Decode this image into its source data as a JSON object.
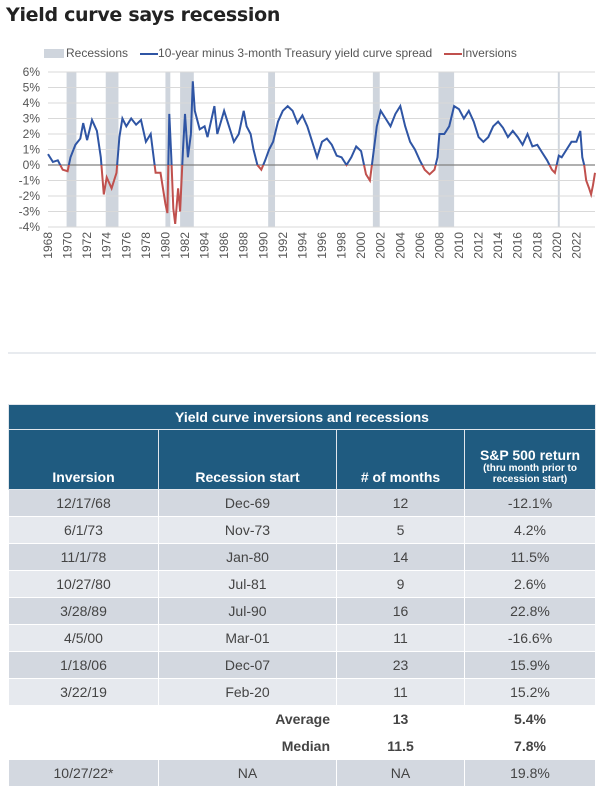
{
  "title": "Yield curve says recession",
  "chart_data": {
    "type": "line",
    "title": "Yield curve says recession",
    "legend": [
      "Recessions",
      "10-year minus 3-month Treasury yield curve spread",
      "Inversions"
    ],
    "legend_position": "top",
    "colors": {
      "spread": "#2f55a4",
      "inversion": "#c0504d",
      "recession": "#cfd5dd",
      "grid": "#d9d9d9",
      "zero": "#808080"
    },
    "ylim": [
      -4,
      6
    ],
    "xlim": [
      1968,
      2023.9
    ],
    "y_ticks": [
      "6%",
      "5%",
      "4%",
      "3%",
      "2%",
      "1%",
      "0%",
      "-1%",
      "-2%",
      "-3%",
      "-4%"
    ],
    "y_tick_values": [
      6,
      5,
      4,
      3,
      2,
      1,
      0,
      -1,
      -2,
      -3,
      -4
    ],
    "x_ticks": [
      "1968",
      "1970",
      "1972",
      "1974",
      "1976",
      "1978",
      "1980",
      "1982",
      "1984",
      "1986",
      "1988",
      "1990",
      "1992",
      "1994",
      "1996",
      "1998",
      "2000",
      "2002",
      "2004",
      "2006",
      "2008",
      "2010",
      "2012",
      "2014",
      "2016",
      "2018",
      "2020",
      "2022"
    ],
    "recessions": [
      [
        1969.9,
        1970.9
      ],
      [
        1973.9,
        1975.2
      ],
      [
        1980.0,
        1980.5
      ],
      [
        1981.5,
        1982.9
      ],
      [
        1990.5,
        1991.2
      ],
      [
        2001.2,
        2001.9
      ],
      [
        2007.9,
        2009.5
      ],
      [
        2020.1,
        2020.3
      ]
    ],
    "series": [
      {
        "name": "10-year minus 3-month Treasury yield curve spread",
        "x": [
          1968.0,
          1968.5,
          1969.0,
          1969.5,
          1970.0,
          1970.3,
          1970.8,
          1971.3,
          1971.6,
          1972.0,
          1972.5,
          1973.0,
          1973.4,
          1973.7,
          1974.0,
          1974.5,
          1975.0,
          1975.3,
          1975.6,
          1976.0,
          1976.5,
          1977.0,
          1977.5,
          1978.0,
          1978.5,
          1979.0,
          1979.5,
          1980.0,
          1980.2,
          1980.4,
          1980.6,
          1980.8,
          1981.0,
          1981.3,
          1981.5,
          1981.8,
          1982.0,
          1982.3,
          1982.6,
          1982.8,
          1983.0,
          1983.5,
          1984.0,
          1984.3,
          1985.0,
          1985.3,
          1986.0,
          1986.5,
          1987.0,
          1987.5,
          1988.0,
          1988.3,
          1988.7,
          1989.0,
          1989.4,
          1989.8,
          1990.2,
          1990.6,
          1991.0,
          1991.5,
          1992.0,
          1992.5,
          1993.0,
          1993.5,
          1994.0,
          1994.5,
          1995.0,
          1995.5,
          1996.0,
          1996.5,
          1997.0,
          1997.5,
          1998.0,
          1998.5,
          1999.0,
          1999.5,
          2000.0,
          2000.5,
          2000.9,
          2001.2,
          2001.6,
          2002.0,
          2002.5,
          2003.0,
          2003.5,
          2004.0,
          2004.5,
          2005.0,
          2005.5,
          2006.0,
          2006.5,
          2007.0,
          2007.5,
          2007.8,
          2008.0,
          2008.5,
          2009.0,
          2009.5,
          2010.0,
          2010.5,
          2011.0,
          2011.5,
          2012.0,
          2012.5,
          2013.0,
          2013.5,
          2014.0,
          2014.5,
          2015.0,
          2015.5,
          2016.0,
          2016.5,
          2017.0,
          2017.5,
          2018.0,
          2018.5,
          2019.0,
          2019.5,
          2019.8,
          2020.2,
          2020.5,
          2021.0,
          2021.5,
          2022.0,
          2022.4,
          2022.6,
          2022.8,
          2023.0,
          2023.3,
          2023.5,
          2023.7,
          2023.9
        ],
        "y": [
          0.7,
          0.2,
          0.3,
          -0.3,
          -0.4,
          0.5,
          1.3,
          1.7,
          2.7,
          1.6,
          2.9,
          2.2,
          0.5,
          -1.9,
          -0.8,
          -1.5,
          -0.5,
          1.8,
          3.0,
          2.5,
          3.0,
          2.6,
          2.9,
          1.5,
          2.0,
          -0.5,
          -0.5,
          -2.5,
          -3.1,
          3.3,
          0.5,
          -2.8,
          -3.8,
          -1.5,
          -3.0,
          1.0,
          3.3,
          0.5,
          2.0,
          5.4,
          3.5,
          2.3,
          2.5,
          1.8,
          3.8,
          2.0,
          3.5,
          2.5,
          1.5,
          2.0,
          3.5,
          2.5,
          2.0,
          1.0,
          0.0,
          -0.3,
          0.3,
          1.0,
          1.5,
          2.8,
          3.5,
          3.8,
          3.5,
          2.7,
          3.2,
          2.5,
          1.5,
          0.5,
          1.5,
          1.7,
          1.3,
          0.6,
          0.5,
          0.0,
          0.5,
          1.2,
          0.9,
          -0.6,
          -1.0,
          0.5,
          2.5,
          3.5,
          3.0,
          2.5,
          3.3,
          3.8,
          2.5,
          1.5,
          1.0,
          0.3,
          -0.3,
          -0.6,
          -0.3,
          0.5,
          2.0,
          2.0,
          2.5,
          3.8,
          3.6,
          3.0,
          3.5,
          2.8,
          1.8,
          1.5,
          1.8,
          2.5,
          2.8,
          2.4,
          1.8,
          2.2,
          1.8,
          1.3,
          2.0,
          1.2,
          1.3,
          0.8,
          0.3,
          -0.3,
          -0.5,
          0.6,
          0.5,
          1.0,
          1.5,
          1.5,
          2.2,
          0.5,
          0.0,
          -1.0,
          -1.5,
          -1.9,
          -1.3,
          -0.5
        ]
      }
    ]
  },
  "table": {
    "caption": "Yield curve inversions and recessions",
    "headers": {
      "inversion": "Inversion",
      "recession": "Recession start",
      "months": "# of months",
      "sp": "S&P 500 return",
      "sp_sub": "(thru month prior to recession start)"
    },
    "rows": [
      [
        "12/17/68",
        "Dec-69",
        "12",
        "-12.1%"
      ],
      [
        "6/1/73",
        "Nov-73",
        "5",
        "4.2%"
      ],
      [
        "11/1/78",
        "Jan-80",
        "14",
        "11.5%"
      ],
      [
        "10/27/80",
        "Jul-81",
        "9",
        "2.6%"
      ],
      [
        "3/28/89",
        "Jul-90",
        "16",
        "22.8%"
      ],
      [
        "4/5/00",
        "Mar-01",
        "11",
        "-16.6%"
      ],
      [
        "1/18/06",
        "Dec-07",
        "23",
        "15.9%"
      ],
      [
        "3/22/19",
        "Feb-20",
        "11",
        "15.2%"
      ]
    ],
    "average": {
      "label": "Average",
      "months": "13",
      "sp": "5.4%"
    },
    "median": {
      "label": "Median",
      "months": "11.5",
      "sp": "7.8%"
    },
    "current": [
      "10/27/22*",
      "NA",
      "NA",
      "19.8%"
    ]
  }
}
